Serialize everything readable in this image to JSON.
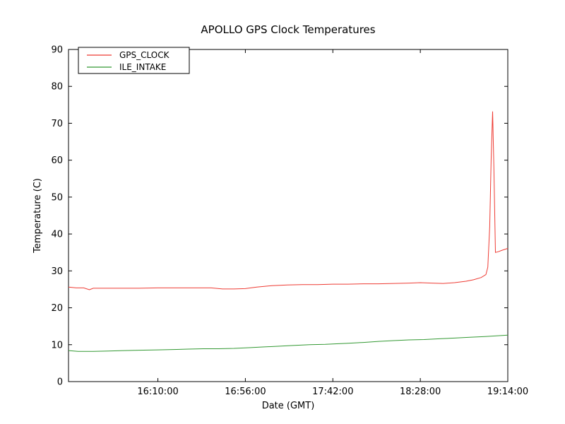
{
  "figure": {
    "background": "#ffffff",
    "frame_color": "#000000"
  },
  "chart_data": {
    "type": "line",
    "title": "APOLLO GPS Clock Temperatures",
    "xlabel": "Date (GMT)",
    "ylabel": "Temperature (C)",
    "grid": false,
    "legend_position": "upper-left",
    "xlim": [
      "15:23:00",
      "19:14:00"
    ],
    "ylim": [
      0,
      90
    ],
    "x_ticks": [
      "16:10:00",
      "16:56:00",
      "17:42:00",
      "18:28:00",
      "19:14:00"
    ],
    "y_ticks": [
      0,
      10,
      20,
      30,
      40,
      50,
      60,
      70,
      80,
      90
    ],
    "series": [
      {
        "name": "GPS_CLOCK",
        "color": "#ee3b33",
        "points": [
          [
            "15:23:00",
            25.6
          ],
          [
            "15:27:00",
            25.4
          ],
          [
            "15:31:00",
            25.4
          ],
          [
            "15:34:00",
            24.9
          ],
          [
            "15:36:00",
            25.3
          ],
          [
            "15:42:00",
            25.3
          ],
          [
            "15:50:00",
            25.3
          ],
          [
            "16:00:00",
            25.3
          ],
          [
            "16:10:00",
            25.4
          ],
          [
            "16:20:00",
            25.4
          ],
          [
            "16:30:00",
            25.4
          ],
          [
            "16:38:00",
            25.4
          ],
          [
            "16:44:00",
            25.1
          ],
          [
            "16:50:00",
            25.1
          ],
          [
            "16:56:00",
            25.2
          ],
          [
            "17:02:00",
            25.6
          ],
          [
            "17:10:00",
            26.0
          ],
          [
            "17:18:00",
            26.2
          ],
          [
            "17:26:00",
            26.3
          ],
          [
            "17:34:00",
            26.3
          ],
          [
            "17:42:00",
            26.4
          ],
          [
            "17:50:00",
            26.4
          ],
          [
            "17:58:00",
            26.5
          ],
          [
            "18:06:00",
            26.5
          ],
          [
            "18:14:00",
            26.6
          ],
          [
            "18:22:00",
            26.7
          ],
          [
            "18:28:00",
            26.8
          ],
          [
            "18:34:00",
            26.7
          ],
          [
            "18:40:00",
            26.6
          ],
          [
            "18:46:00",
            26.8
          ],
          [
            "18:52:00",
            27.2
          ],
          [
            "18:56:00",
            27.6
          ],
          [
            "19:00:00",
            28.2
          ],
          [
            "19:02:30",
            29.0
          ],
          [
            "19:03:30",
            31.0
          ],
          [
            "19:04:30",
            42.0
          ],
          [
            "19:05:15",
            60.0
          ],
          [
            "19:06:00",
            73.2
          ],
          [
            "19:06:40",
            58.0
          ],
          [
            "19:07:30",
            35.0
          ],
          [
            "19:09:00",
            35.2
          ],
          [
            "19:11:00",
            35.6
          ],
          [
            "19:14:00",
            36.1
          ]
        ]
      },
      {
        "name": "ILE_INTAKE",
        "color": "#339933",
        "points": [
          [
            "15:23:00",
            8.4
          ],
          [
            "15:28:00",
            8.2
          ],
          [
            "15:36:00",
            8.2
          ],
          [
            "15:44:00",
            8.3
          ],
          [
            "15:52:00",
            8.4
          ],
          [
            "16:00:00",
            8.5
          ],
          [
            "16:10:00",
            8.6
          ],
          [
            "16:18:00",
            8.7
          ],
          [
            "16:26:00",
            8.8
          ],
          [
            "16:34:00",
            8.9
          ],
          [
            "16:42:00",
            8.9
          ],
          [
            "16:50:00",
            9.0
          ],
          [
            "16:58:00",
            9.2
          ],
          [
            "17:06:00",
            9.4
          ],
          [
            "17:14:00",
            9.6
          ],
          [
            "17:22:00",
            9.8
          ],
          [
            "17:30:00",
            10.0
          ],
          [
            "17:38:00",
            10.1
          ],
          [
            "17:42:00",
            10.2
          ],
          [
            "17:50:00",
            10.4
          ],
          [
            "17:58:00",
            10.6
          ],
          [
            "18:06:00",
            10.9
          ],
          [
            "18:14:00",
            11.1
          ],
          [
            "18:22:00",
            11.3
          ],
          [
            "18:30:00",
            11.4
          ],
          [
            "18:38:00",
            11.6
          ],
          [
            "18:46:00",
            11.8
          ],
          [
            "18:54:00",
            12.0
          ],
          [
            "19:02:00",
            12.2
          ],
          [
            "19:08:00",
            12.4
          ],
          [
            "19:14:00",
            12.6
          ]
        ]
      }
    ]
  }
}
